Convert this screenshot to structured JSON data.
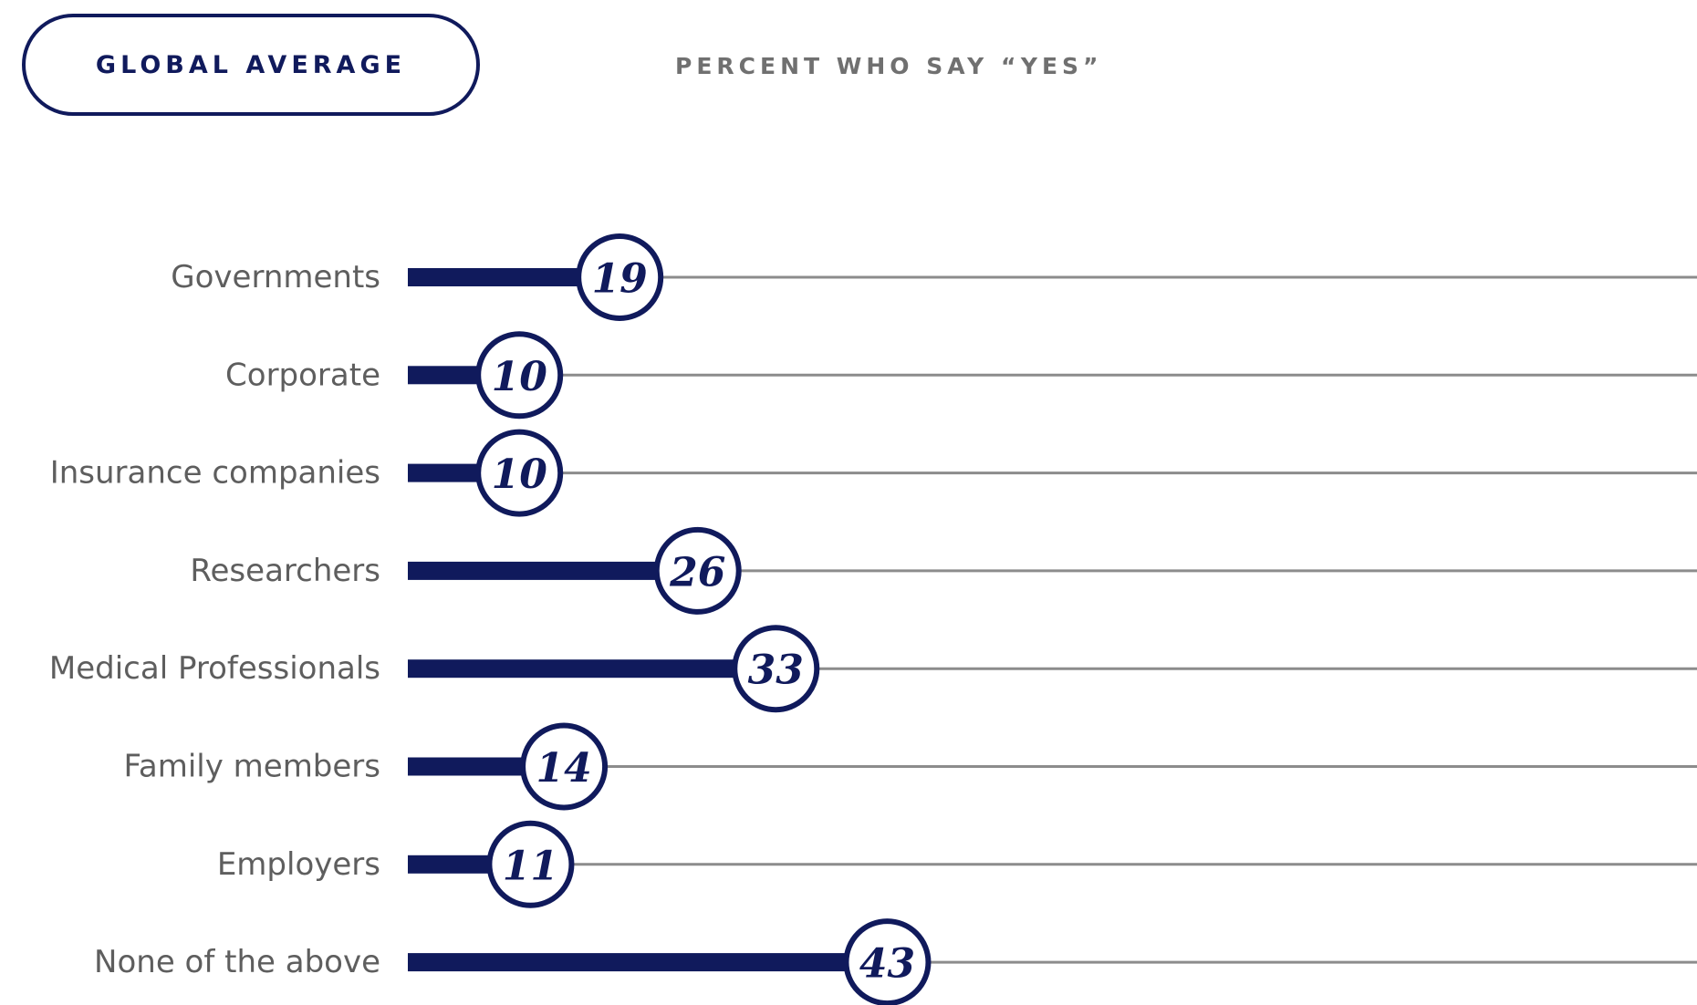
{
  "header": {
    "badge_label": "GLOBAL AVERAGE",
    "subtitle": "PERCENT WHO SAY “YES”"
  },
  "colors": {
    "bar": "#101a5c",
    "track": "#8c8c8c",
    "label_text": "#5e5e5e",
    "subtitle_text": "#707070"
  },
  "chart_data": {
    "type": "bar",
    "orientation": "horizontal",
    "categories": [
      "Governments",
      "Corporate",
      "Insurance companies",
      "Researchers",
      "Medical Professionals",
      "Family members",
      "Employers",
      "None of the above"
    ],
    "values": [
      19,
      10,
      10,
      26,
      33,
      14,
      11,
      43
    ],
    "unit": "%",
    "xlim": [
      0,
      100
    ],
    "grid": false,
    "legend": "none"
  }
}
